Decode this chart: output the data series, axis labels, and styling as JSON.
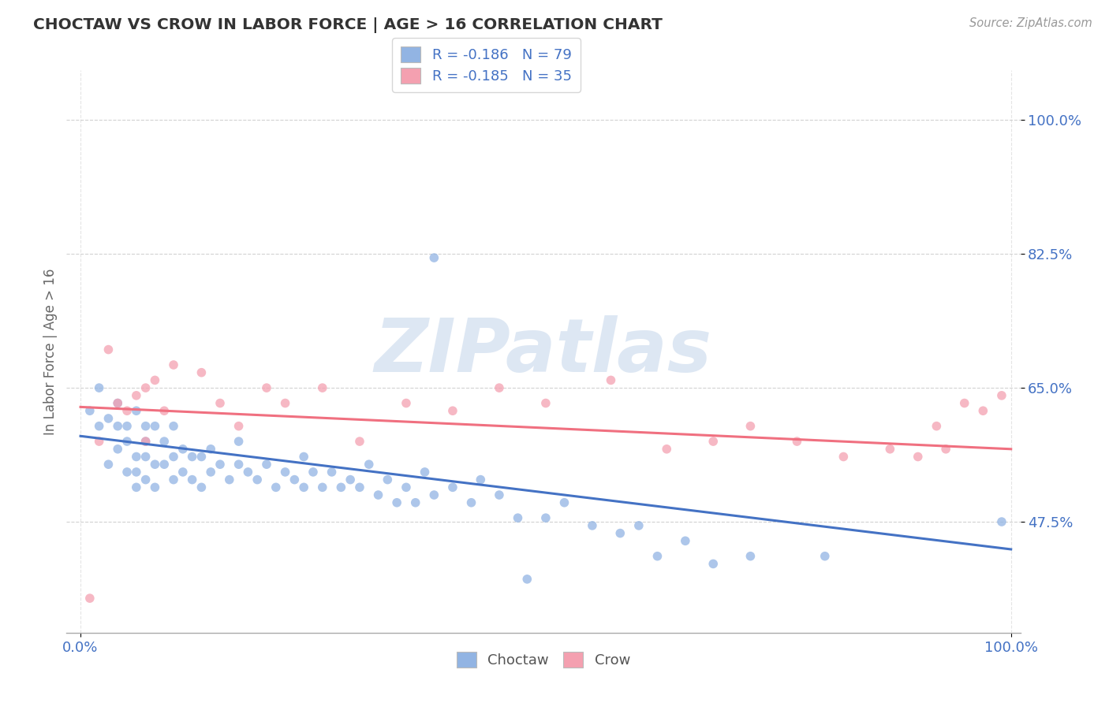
{
  "title": "CHOCTAW VS CROW IN LABOR FORCE | AGE > 16 CORRELATION CHART",
  "ylabel": "In Labor Force | Age > 16",
  "source": "Source: ZipAtlas.com",
  "choctaw_color": "#92b4e3",
  "crow_color": "#f4a0b0",
  "choctaw_line_color": "#4472c4",
  "crow_line_color": "#f07080",
  "watermark_text": "ZIPatlas",
  "background_color": "#ffffff",
  "y_tick_values": [
    0.475,
    0.65,
    0.825,
    1.0
  ],
  "y_tick_labels": [
    "47.5%",
    "65.0%",
    "82.5%",
    "100.0%"
  ],
  "choctaw_x": [
    0.01,
    0.02,
    0.02,
    0.03,
    0.03,
    0.04,
    0.04,
    0.04,
    0.05,
    0.05,
    0.05,
    0.06,
    0.06,
    0.06,
    0.06,
    0.07,
    0.07,
    0.07,
    0.07,
    0.08,
    0.08,
    0.08,
    0.09,
    0.09,
    0.1,
    0.1,
    0.1,
    0.11,
    0.11,
    0.12,
    0.12,
    0.13,
    0.13,
    0.14,
    0.14,
    0.15,
    0.16,
    0.17,
    0.17,
    0.18,
    0.19,
    0.2,
    0.21,
    0.22,
    0.23,
    0.24,
    0.24,
    0.25,
    0.26,
    0.27,
    0.28,
    0.29,
    0.3,
    0.31,
    0.32,
    0.33,
    0.34,
    0.35,
    0.36,
    0.37,
    0.38,
    0.38,
    0.4,
    0.42,
    0.43,
    0.45,
    0.47,
    0.48,
    0.5,
    0.52,
    0.55,
    0.58,
    0.6,
    0.62,
    0.65,
    0.68,
    0.72,
    0.8,
    0.99
  ],
  "choctaw_y": [
    0.62,
    0.6,
    0.65,
    0.55,
    0.61,
    0.57,
    0.6,
    0.63,
    0.54,
    0.58,
    0.6,
    0.52,
    0.54,
    0.56,
    0.62,
    0.53,
    0.56,
    0.58,
    0.6,
    0.52,
    0.55,
    0.6,
    0.55,
    0.58,
    0.53,
    0.56,
    0.6,
    0.54,
    0.57,
    0.53,
    0.56,
    0.52,
    0.56,
    0.54,
    0.57,
    0.55,
    0.53,
    0.55,
    0.58,
    0.54,
    0.53,
    0.55,
    0.52,
    0.54,
    0.53,
    0.52,
    0.56,
    0.54,
    0.52,
    0.54,
    0.52,
    0.53,
    0.52,
    0.55,
    0.51,
    0.53,
    0.5,
    0.52,
    0.5,
    0.54,
    0.51,
    0.82,
    0.52,
    0.5,
    0.53,
    0.51,
    0.48,
    0.4,
    0.48,
    0.5,
    0.47,
    0.46,
    0.47,
    0.43,
    0.45,
    0.42,
    0.43,
    0.43,
    0.475
  ],
  "crow_x": [
    0.01,
    0.02,
    0.03,
    0.04,
    0.05,
    0.06,
    0.07,
    0.07,
    0.08,
    0.09,
    0.1,
    0.13,
    0.15,
    0.17,
    0.2,
    0.22,
    0.26,
    0.3,
    0.35,
    0.4,
    0.45,
    0.5,
    0.57,
    0.63,
    0.68,
    0.72,
    0.77,
    0.82,
    0.87,
    0.9,
    0.92,
    0.93,
    0.95,
    0.97,
    0.99
  ],
  "crow_y": [
    0.375,
    0.58,
    0.7,
    0.63,
    0.62,
    0.64,
    0.58,
    0.65,
    0.66,
    0.62,
    0.68,
    0.67,
    0.63,
    0.6,
    0.65,
    0.63,
    0.65,
    0.58,
    0.63,
    0.62,
    0.65,
    0.63,
    0.66,
    0.57,
    0.58,
    0.6,
    0.58,
    0.56,
    0.57,
    0.56,
    0.6,
    0.57,
    0.63,
    0.62,
    0.64
  ],
  "choctaw_regr": [
    0.587,
    -0.148
  ],
  "crow_regr": [
    0.625,
    -0.055
  ]
}
